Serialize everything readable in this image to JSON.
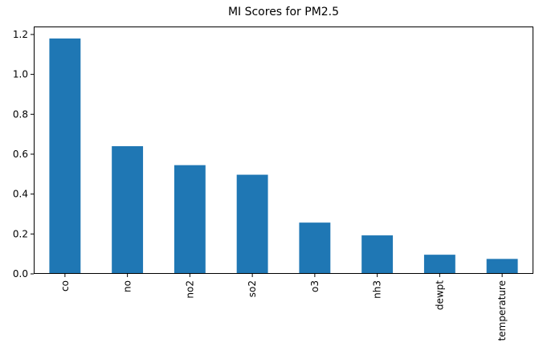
{
  "chart_data": {
    "type": "bar",
    "title": "MI Scores for PM2.5",
    "xlabel": "",
    "ylabel": "",
    "categories": [
      "co",
      "no",
      "no2",
      "so2",
      "o3",
      "nh3",
      "dewpt",
      "temperature"
    ],
    "values": [
      1.18,
      0.64,
      0.545,
      0.497,
      0.257,
      0.193,
      0.096,
      0.075
    ],
    "ylim": [
      0,
      1.24
    ],
    "yticks": [
      0.0,
      0.2,
      0.4,
      0.6,
      0.8,
      1.0,
      1.2
    ],
    "ytick_labels": [
      "0.0",
      "0.2",
      "0.4",
      "0.6",
      "0.8",
      "1.0",
      "1.2"
    ],
    "bar_color": "#1f77b4",
    "grid": false,
    "legend": "none"
  }
}
